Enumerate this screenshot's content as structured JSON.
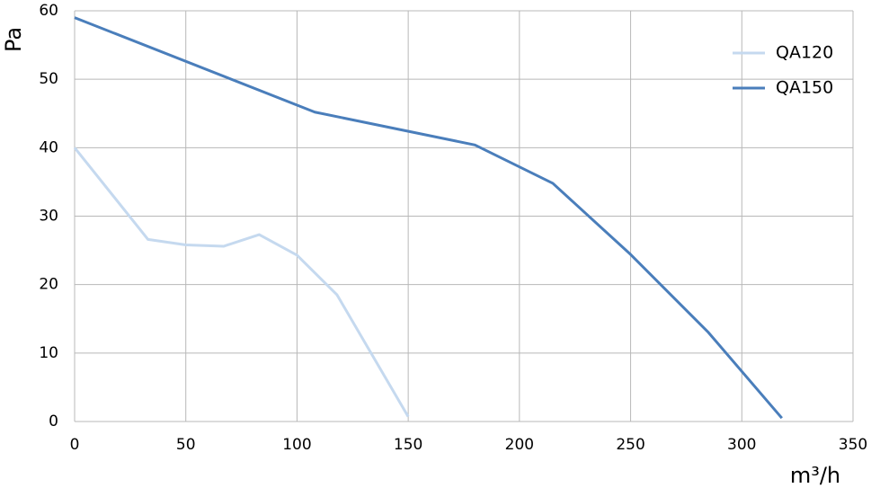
{
  "chart_data": {
    "type": "line",
    "xlabel": "m³/h",
    "ylabel": "Pa",
    "xlim": [
      0,
      350
    ],
    "xticks": [
      0,
      50,
      100,
      150,
      200,
      250,
      300,
      350
    ],
    "ylim": [
      0,
      60
    ],
    "yticks": [
      0,
      10,
      20,
      30,
      40,
      50,
      60
    ],
    "grid": true,
    "legend": "upper right",
    "series": [
      {
        "name": "QA120",
        "color": "#c5d9ef",
        "x": [
          0,
          33,
          50,
          67,
          83,
          100,
          118,
          150
        ],
        "values": [
          40,
          26.6,
          25.8,
          25.6,
          27.3,
          24.3,
          18.5,
          0.7
        ]
      },
      {
        "name": "QA150",
        "color": "#4a7ebb",
        "x": [
          0,
          108,
          180,
          215,
          250,
          285,
          318
        ],
        "values": [
          59,
          45.2,
          40.4,
          34.8,
          24.4,
          13,
          0.5
        ]
      }
    ]
  }
}
